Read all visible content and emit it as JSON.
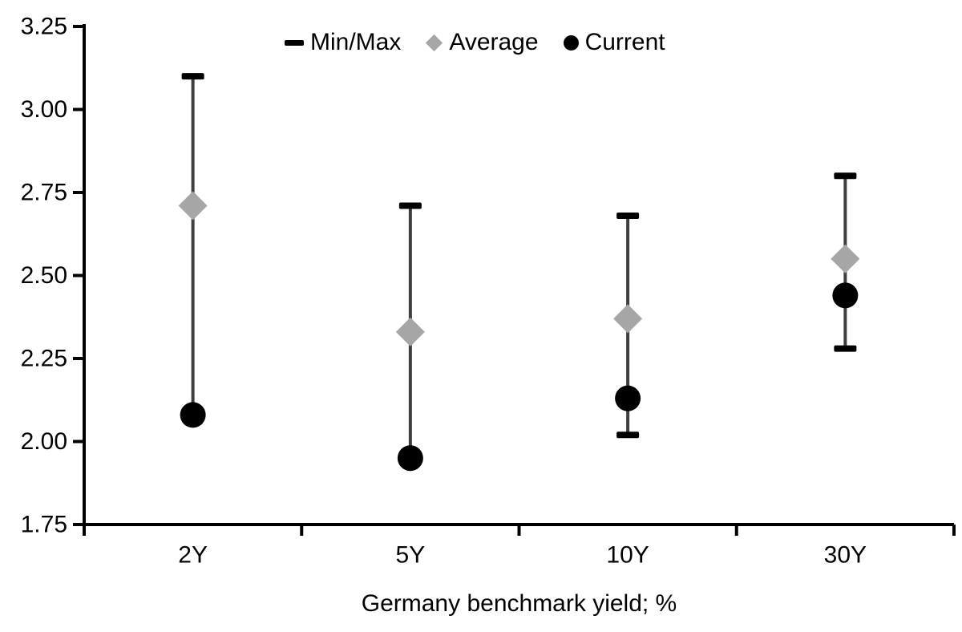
{
  "chart_data": {
    "type": "range-dot",
    "title": "",
    "xlabel": "Germany benchmark yield; %",
    "ylabel": "",
    "categories": [
      "2Y",
      "5Y",
      "10Y",
      "30Y"
    ],
    "series": [
      {
        "name": "Min/Max",
        "role": "range",
        "marker": "dash",
        "min": [
          2.08,
          1.95,
          2.02,
          2.28
        ],
        "max": [
          3.1,
          2.71,
          2.68,
          2.8
        ],
        "min_cap_visible": [
          false,
          false,
          true,
          true
        ],
        "max_cap_visible": [
          true,
          true,
          true,
          true
        ]
      },
      {
        "name": "Average",
        "role": "point",
        "marker": "diamond",
        "values": [
          2.71,
          2.33,
          2.37,
          2.55
        ]
      },
      {
        "name": "Current",
        "role": "point",
        "marker": "circle",
        "values": [
          2.08,
          1.95,
          2.13,
          2.44
        ]
      }
    ],
    "ylim": [
      1.75,
      3.25
    ],
    "ytick_step": 0.25,
    "yticks": [
      "3.25",
      "3.00",
      "2.75",
      "2.50",
      "2.25",
      "2.00",
      "1.75"
    ],
    "ytick_values": [
      3.25,
      3.0,
      2.75,
      2.5,
      2.25,
      2.0,
      1.75
    ],
    "grid": false,
    "legend_position": "top"
  },
  "legend": {
    "items": [
      {
        "label": "Min/Max",
        "marker": "dash"
      },
      {
        "label": "Average",
        "marker": "diamond"
      },
      {
        "label": "Current",
        "marker": "circle"
      }
    ]
  },
  "colors": {
    "background": "#ffffff",
    "axis": "#000000",
    "text": "#000000",
    "range_line": "#3f3f3f",
    "cap": "#000000",
    "average": "#a6a6a6",
    "current": "#000000"
  }
}
